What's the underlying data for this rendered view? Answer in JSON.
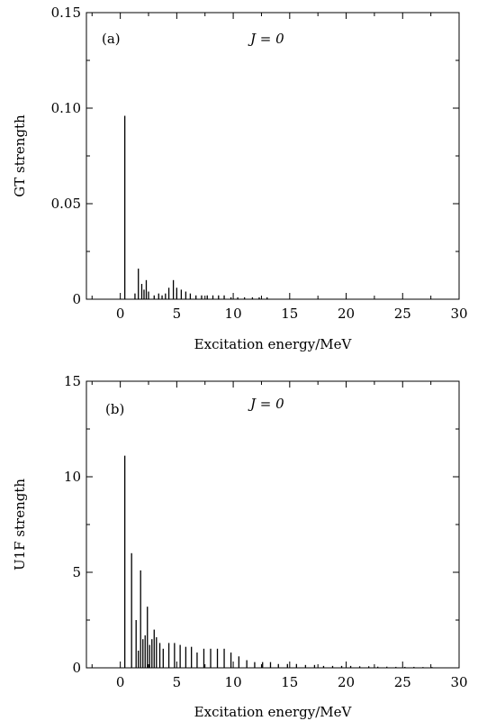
{
  "chart_data": [
    {
      "type": "bar",
      "panel_label": "(a)",
      "annotation": "J = 0",
      "xlabel": "Excitation energy/MeV",
      "ylabel": "GT strength",
      "xlim": [
        -3,
        30
      ],
      "ylim": [
        0,
        0.15
      ],
      "x_ticks": [
        0,
        5,
        10,
        15,
        20,
        25,
        30
      ],
      "x_tick_labels": [
        "0",
        "5",
        "10",
        "15",
        "20",
        "25",
        "30"
      ],
      "y_ticks": [
        0,
        0.05,
        0.1,
        0.15
      ],
      "y_tick_labels": [
        "0",
        "0.05",
        "0.10",
        "0.15"
      ],
      "grid": false,
      "x": [
        0.4,
        1.3,
        1.6,
        1.9,
        2.1,
        2.3,
        2.5,
        3.0,
        3.4,
        3.7,
        4.0,
        4.3,
        4.7,
        5.0,
        5.4,
        5.8,
        6.2,
        6.7,
        7.2,
        7.7,
        8.2,
        8.7,
        9.2,
        9.8,
        10.4,
        11.0,
        11.7,
        12.3,
        13.0
      ],
      "values": [
        0.096,
        0.003,
        0.016,
        0.008,
        0.005,
        0.01,
        0.004,
        0.002,
        0.003,
        0.002,
        0.003,
        0.006,
        0.01,
        0.006,
        0.005,
        0.004,
        0.003,
        0.002,
        0.002,
        0.002,
        0.002,
        0.002,
        0.002,
        0.001,
        0.001,
        0.001,
        0.001,
        0.001,
        0.001
      ]
    },
    {
      "type": "bar",
      "panel_label": "(b)",
      "annotation": "J = 0",
      "xlabel": "Excitation energy/MeV",
      "ylabel": "U1F strength",
      "xlim": [
        -3,
        30
      ],
      "ylim": [
        0,
        15
      ],
      "x_ticks": [
        0,
        5,
        10,
        15,
        20,
        25,
        30
      ],
      "x_tick_labels": [
        "0",
        "5",
        "10",
        "15",
        "20",
        "25",
        "30"
      ],
      "y_ticks": [
        0,
        5,
        10,
        15
      ],
      "y_tick_labels": [
        "0",
        "5",
        "10",
        "15"
      ],
      "grid": false,
      "x": [
        0.4,
        1.0,
        1.4,
        1.6,
        1.8,
        2.0,
        2.2,
        2.4,
        2.6,
        2.8,
        3.0,
        3.2,
        3.5,
        3.8,
        4.3,
        4.8,
        5.3,
        5.8,
        6.3,
        6.8,
        7.4,
        8.0,
        8.6,
        9.2,
        9.8,
        10.5,
        11.2,
        11.9,
        12.6,
        13.3,
        14.0,
        14.8,
        15.6,
        16.4,
        17.2,
        18.0,
        18.8,
        19.6,
        20.4,
        21.2,
        22.0,
        22.8,
        23.6,
        24.4,
        25.2,
        26.0,
        26.8,
        27.6
      ],
      "values": [
        11.1,
        6.0,
        2.5,
        0.9,
        5.1,
        1.5,
        1.7,
        3.2,
        1.2,
        1.5,
        2.0,
        1.6,
        1.3,
        1.0,
        1.3,
        1.3,
        1.2,
        1.1,
        1.1,
        0.8,
        1.0,
        1.0,
        1.0,
        1.0,
        0.8,
        0.6,
        0.4,
        0.3,
        0.3,
        0.3,
        0.2,
        0.2,
        0.2,
        0.15,
        0.15,
        0.1,
        0.1,
        0.1,
        0.1,
        0.08,
        0.08,
        0.06,
        0.06,
        0.05,
        0.05,
        0.05,
        0.04,
        0.04
      ]
    }
  ]
}
